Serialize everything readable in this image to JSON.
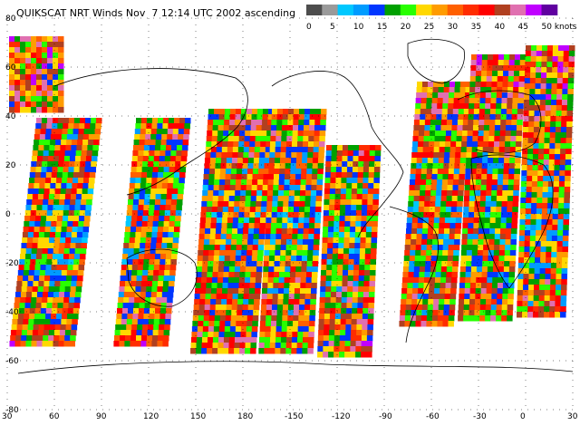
{
  "title": "QUIKSCAT NRT Winds Nov  7 12:14 UTC 2002 ascending",
  "colorbar": {
    "colors": [
      "#4d4d4d",
      "#9a9a9a",
      "#00c8ff",
      "#009cff",
      "#0036ff",
      "#00a000",
      "#28ff00",
      "#ffd800",
      "#ff9c00",
      "#ff6000",
      "#ff2c00",
      "#ff0000",
      "#b04020",
      "#e070b0",
      "#c000ff",
      "#6000a0"
    ],
    "labels": [
      "0",
      "5",
      "10",
      "15",
      "20",
      "25",
      "30",
      "35",
      "40",
      "45",
      "50 knots"
    ]
  },
  "axes": {
    "lon_labels": [
      "30",
      "60",
      "90",
      "120",
      "150",
      "180",
      "-150",
      "-120",
      "-90",
      "-60",
      "-30",
      "0",
      "30"
    ],
    "lat_labels": [
      "80",
      "60",
      "40",
      "20",
      "0",
      "-20",
      "-40",
      "-60",
      "-80"
    ]
  }
}
